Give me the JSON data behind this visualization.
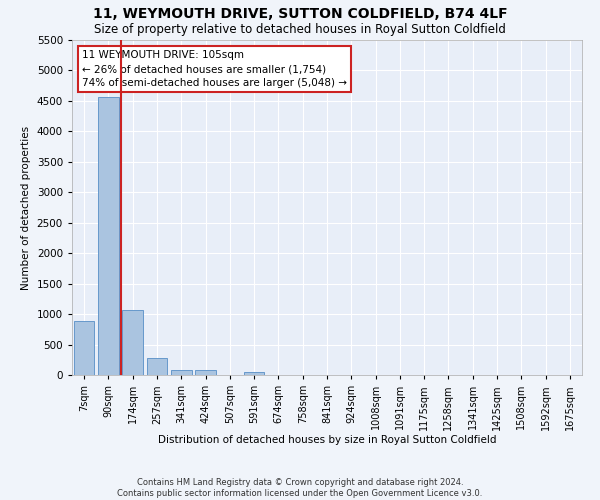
{
  "title": "11, WEYMOUTH DRIVE, SUTTON COLDFIELD, B74 4LF",
  "subtitle": "Size of property relative to detached houses in Royal Sutton Coldfield",
  "xlabel": "Distribution of detached houses by size in Royal Sutton Coldfield",
  "ylabel": "Number of detached properties",
  "footer_line1": "Contains HM Land Registry data © Crown copyright and database right 2024.",
  "footer_line2": "Contains public sector information licensed under the Open Government Licence v3.0.",
  "annotation_title": "11 WEYMOUTH DRIVE: 105sqm",
  "annotation_line1": "← 26% of detached houses are smaller (1,754)",
  "annotation_line2": "74% of semi-detached houses are larger (5,048) →",
  "property_size": 105,
  "bar_categories": [
    "7sqm",
    "90sqm",
    "174sqm",
    "257sqm",
    "341sqm",
    "424sqm",
    "507sqm",
    "591sqm",
    "674sqm",
    "758sqm",
    "841sqm",
    "924sqm",
    "1008sqm",
    "1091sqm",
    "1175sqm",
    "1258sqm",
    "1341sqm",
    "1425sqm",
    "1508sqm",
    "1592sqm",
    "1675sqm"
  ],
  "bar_values": [
    880,
    4570,
    1060,
    285,
    90,
    75,
    0,
    55,
    0,
    0,
    0,
    0,
    0,
    0,
    0,
    0,
    0,
    0,
    0,
    0,
    0
  ],
  "bar_color": "#aac4e0",
  "bar_edge_color": "#6699cc",
  "marker_color": "#cc2222",
  "ylim": [
    0,
    5500
  ],
  "yticks": [
    0,
    500,
    1000,
    1500,
    2000,
    2500,
    3000,
    3500,
    4000,
    4500,
    5000,
    5500
  ],
  "bg_color": "#e8eef8",
  "grid_color": "#ffffff",
  "fig_bg_color": "#f0f4fa",
  "annotation_box_color": "#ffffff",
  "annotation_box_edge": "#cc2222",
  "title_fontsize": 10,
  "subtitle_fontsize": 8.5
}
